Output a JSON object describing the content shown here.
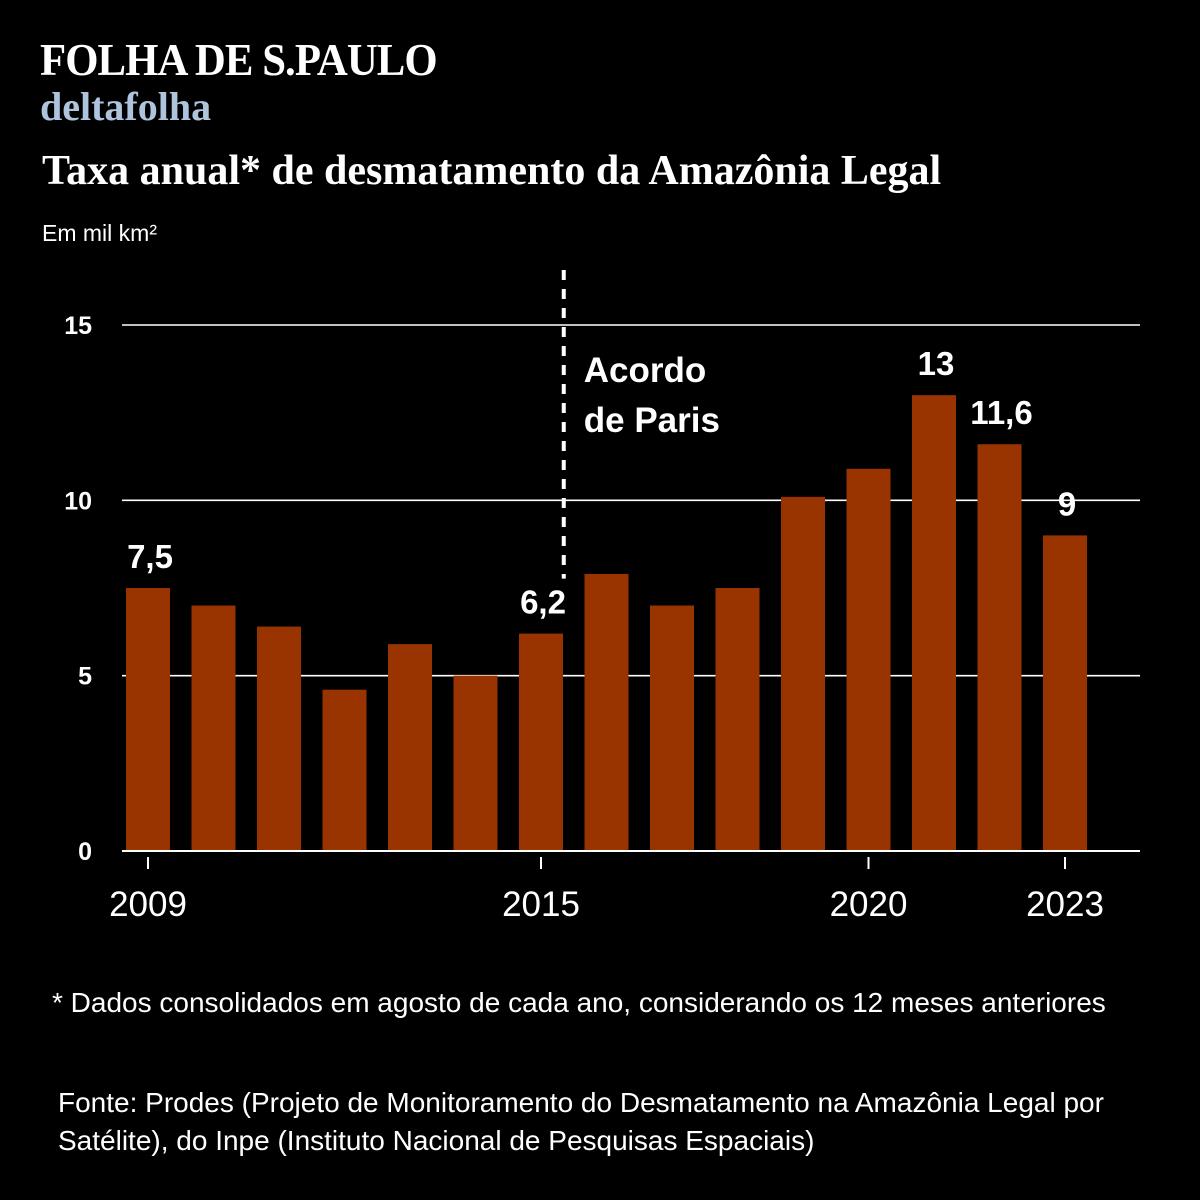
{
  "brand": {
    "logo": "FOLHA DE S.PAULO",
    "section": "deltafolha"
  },
  "chart_data": {
    "type": "bar",
    "title": "Taxa anual* de desmatamento da Amazônia Legal",
    "unit_label": "Em mil km²",
    "categories": [
      "2009",
      "2010",
      "2011",
      "2012",
      "2013",
      "2014",
      "2015",
      "2016",
      "2017",
      "2018",
      "2019",
      "2020",
      "2021",
      "2022",
      "2023"
    ],
    "values": [
      7.5,
      7.0,
      6.4,
      4.6,
      5.9,
      5.0,
      6.2,
      7.9,
      7.0,
      7.5,
      10.1,
      10.9,
      13.0,
      11.6,
      9.0
    ],
    "x_tick_labels": [
      "2009",
      "2015",
      "2020",
      "2023"
    ],
    "y_ticks": [
      0,
      5,
      10,
      15
    ],
    "y_tick_labels": [
      "0",
      "5",
      "10",
      "15"
    ],
    "ylim": [
      0,
      15
    ],
    "grid": true,
    "data_labels": [
      {
        "category": "2009",
        "text": "7,5"
      },
      {
        "category": "2015",
        "text": "6,2"
      },
      {
        "category": "2021",
        "text": "13"
      },
      {
        "category": "2022",
        "text": "11,6"
      },
      {
        "category": "2023",
        "text": "9"
      }
    ],
    "annotation": {
      "position_between": [
        "2015",
        "2016"
      ],
      "lines": [
        "Acordo",
        "de Paris"
      ]
    },
    "colors": {
      "bar": "#993300",
      "grid": "#ffffff",
      "background": "#000000",
      "text": "#ffffff"
    }
  },
  "footnote": "* Dados consolidados em agosto de cada ano, considerando os 12 meses anteriores",
  "source": "Fonte: Prodes (Projeto de Monitoramento do Desmatamento na Amazônia Legal por Satélite), do Inpe (Instituto Nacional de Pesquisas Espaciais)"
}
